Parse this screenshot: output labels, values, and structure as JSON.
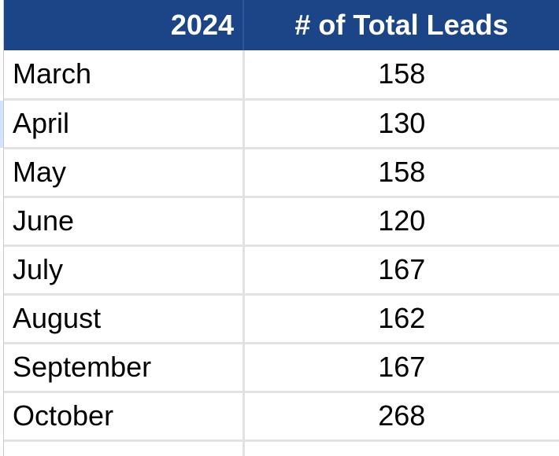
{
  "table": {
    "headers": {
      "year": "2024",
      "leads": "# of Total Leads"
    },
    "rows": [
      {
        "month": "March",
        "leads": "158"
      },
      {
        "month": "April",
        "leads": "130"
      },
      {
        "month": "May",
        "leads": "158"
      },
      {
        "month": "June",
        "leads": "120"
      },
      {
        "month": "July",
        "leads": "167"
      },
      {
        "month": "August",
        "leads": "162"
      },
      {
        "month": "September",
        "leads": "167"
      },
      {
        "month": "October",
        "leads": "268"
      }
    ]
  },
  "colors": {
    "header_background": "#1c4587",
    "header_text": "#ffffff",
    "gridline": "#e2e2e2",
    "row_selection": "#d3e3fd"
  }
}
